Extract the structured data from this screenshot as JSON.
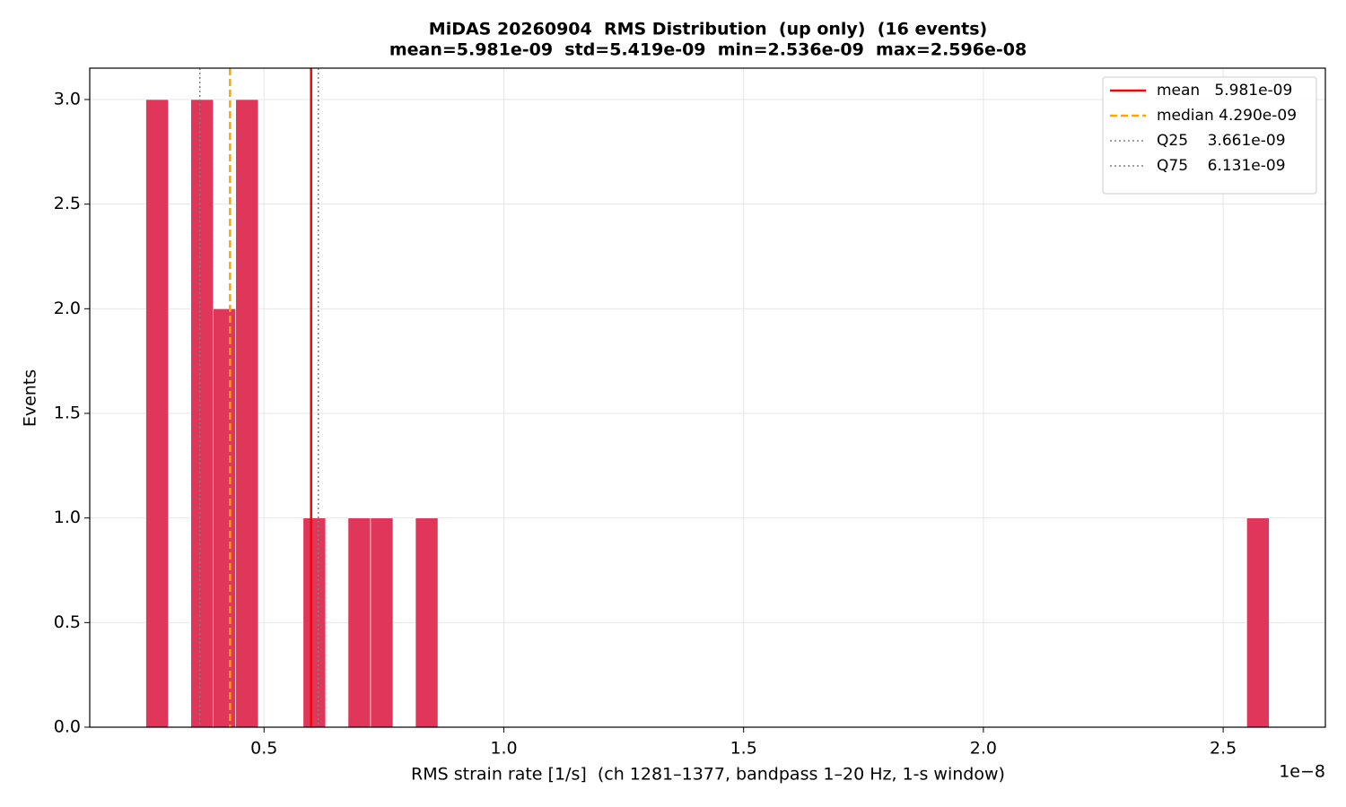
{
  "chart_data": {
    "type": "histogram",
    "title": "MiDAS 20260904  RMS Distribution  (up only)  (16 events)",
    "subtitle": "mean=5.981e-09  std=5.419e-09  min=2.536e-09  max=2.596e-08",
    "xlabel": "RMS strain rate [1/s]  (ch 1281–1377, bandpass 1–20 Hz, 1-s window)",
    "ylabel": "Events",
    "x_offset_label": "1e−8",
    "color": "#e0365a",
    "bins": [
      0.2536,
      0.300448,
      0.347296,
      0.394144,
      0.440992,
      0.48784,
      0.534688,
      0.581536,
      0.628384,
      0.675232,
      0.72208,
      0.768928,
      0.815776,
      0.862624,
      0.909472,
      0.95632,
      1.003168,
      1.050016,
      1.096864,
      1.143712,
      1.19056,
      1.237408,
      1.284256,
      1.331104,
      1.377952,
      1.4248,
      1.471648,
      1.518496,
      1.565344,
      1.612192,
      1.65904,
      1.705888,
      1.752736,
      1.799584,
      1.846432,
      1.89328,
      1.940128,
      1.986976,
      2.033824,
      2.080672,
      2.12752,
      2.174368,
      2.221216,
      2.268064,
      2.314912,
      2.36176,
      2.408608,
      2.455456,
      2.502304,
      2.549152,
      2.596
    ],
    "values": [
      3,
      0,
      3,
      2,
      3,
      0,
      0,
      1,
      0,
      1,
      1,
      0,
      1,
      0,
      0,
      0,
      0,
      0,
      0,
      0,
      0,
      0,
      0,
      0,
      0,
      0,
      0,
      0,
      0,
      0,
      0,
      0,
      0,
      0,
      0,
      0,
      0,
      0,
      0,
      0,
      0,
      0,
      0,
      0,
      0,
      0,
      0,
      0,
      0,
      1
    ],
    "lines": [
      {
        "name": "mean   5.981e-09",
        "value": 0.5981,
        "color": "#ff0000",
        "style": "solid"
      },
      {
        "name": "median 4.290e-09",
        "value": 0.429,
        "color": "#ffa500",
        "style": "dashed"
      },
      {
        "name": "Q25    3.661e-09",
        "value": 0.3661,
        "color": "#808080",
        "style": "dotted"
      },
      {
        "name": "Q75    6.131e-09",
        "value": 0.6131,
        "color": "#808080",
        "style": "dotted"
      }
    ],
    "xlim": [
      0.1365,
      2.7131
    ],
    "ylim": [
      0,
      3.15
    ],
    "xticks": [
      0.5,
      {
        "value": 1.0,
        "label": "1.0"
      },
      1.5,
      {
        "value": 2.0,
        "label": "2.0"
      },
      2.5
    ],
    "yticks": [
      {
        "value": 0,
        "label": "0.0"
      },
      0.5,
      {
        "value": 1.0,
        "label": "1.0"
      },
      1.5,
      {
        "value": 2.0,
        "label": "2.0"
      },
      2.5,
      {
        "value": 3.0,
        "label": "3.0"
      }
    ],
    "grid": true,
    "legend": "upper right"
  }
}
